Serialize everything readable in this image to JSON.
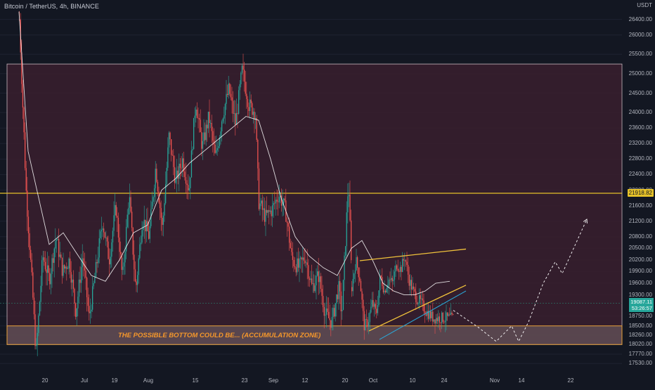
{
  "header": {
    "symbol_label": "Bitcoin / TetherUS, 4h, BINANCE"
  },
  "colors": {
    "background": "#131722",
    "up_candle": "#26a69a",
    "down_candle": "#ef5350",
    "range_box_fill": "#3a1f2e",
    "range_box_border": "#c8b8c0",
    "zone_fill": "#5c4a52",
    "zone_border": "#e8a13a",
    "resistance_line": "#e6c229",
    "wedge_line": "#f0c23b",
    "wedge_lower_line": "#2aa8d8",
    "moving_average": "#ffffff",
    "annotation_text": "#f6982b",
    "projection": "#ffffff"
  },
  "chart_data": {
    "type": "candlestick",
    "title": "Bitcoin / TetherUS, 4h, BINANCE",
    "y_axis_unit": "USDT",
    "ylim": [
      17300,
      26900
    ],
    "y_ticks": [
      "26400.00",
      "26000.00",
      "25500.00",
      "25000.00",
      "24500.00",
      "24000.00",
      "23600.00",
      "23200.00",
      "22800.00",
      "22400.00",
      "22000.00",
      "21600.00",
      "21200.00",
      "20800.00",
      "20500.00",
      "20200.00",
      "19900.00",
      "19600.00",
      "19300.00",
      "18750.00",
      "18500.00",
      "18260.00",
      "18020.00",
      "17770.00",
      "17530.00"
    ],
    "x_ticks": [
      "20",
      "Jul",
      "19",
      "Aug",
      "15",
      "23",
      "Sep",
      "12",
      "20",
      "Oct",
      "10",
      "24",
      "Nov",
      "14",
      "22"
    ],
    "price_path": [
      [
        0.0,
        26400
      ],
      [
        0.02,
        22000
      ],
      [
        0.04,
        19300
      ],
      [
        0.05,
        17750
      ],
      [
        0.07,
        20300
      ],
      [
        0.09,
        19700
      ],
      [
        0.11,
        20800
      ],
      [
        0.13,
        19900
      ],
      [
        0.15,
        20200
      ],
      [
        0.17,
        18850
      ],
      [
        0.19,
        20300
      ],
      [
        0.21,
        18700
      ],
      [
        0.23,
        19950
      ],
      [
        0.25,
        21200
      ],
      [
        0.27,
        20200
      ],
      [
        0.29,
        21600
      ],
      [
        0.31,
        19700
      ],
      [
        0.33,
        21900
      ],
      [
        0.35,
        19400
      ],
      [
        0.37,
        21300
      ],
      [
        0.39,
        20800
      ],
      [
        0.41,
        22600
      ],
      [
        0.43,
        21000
      ],
      [
        0.45,
        23400
      ],
      [
        0.47,
        22200
      ],
      [
        0.49,
        22800
      ],
      [
        0.51,
        22000
      ],
      [
        0.53,
        24300
      ],
      [
        0.55,
        23100
      ],
      [
        0.57,
        23900
      ],
      [
        0.59,
        22800
      ],
      [
        0.61,
        23900
      ],
      [
        0.63,
        24600
      ],
      [
        0.65,
        23700
      ],
      [
        0.67,
        25100
      ],
      [
        0.69,
        24200
      ],
      [
        0.71,
        24000
      ],
      [
        0.72,
        21700
      ],
      [
        0.74,
        21300
      ],
      [
        0.76,
        21500
      ],
      [
        0.78,
        21900
      ],
      [
        0.8,
        21500
      ],
      [
        0.82,
        20200
      ],
      [
        0.84,
        20000
      ],
      [
        0.86,
        20300
      ],
      [
        0.88,
        19500
      ],
      [
        0.9,
        19800
      ],
      [
        0.92,
        18800
      ],
      [
        0.94,
        18600
      ],
      [
        0.96,
        19500
      ],
      [
        0.97,
        18800
      ],
      [
        0.99,
        22300
      ],
      [
        1.0,
        19500
      ]
    ],
    "price_path_2": [
      [
        0.0,
        19500
      ],
      [
        0.04,
        20200
      ],
      [
        0.08,
        19700
      ],
      [
        0.12,
        18500
      ],
      [
        0.16,
        18600
      ],
      [
        0.2,
        19100
      ],
      [
        0.24,
        18800
      ],
      [
        0.28,
        19800
      ],
      [
        0.32,
        19400
      ],
      [
        0.36,
        19700
      ],
      [
        0.4,
        19600
      ],
      [
        0.44,
        20100
      ],
      [
        0.48,
        19950
      ],
      [
        0.52,
        20300
      ],
      [
        0.56,
        19700
      ],
      [
        0.6,
        19400
      ],
      [
        0.64,
        19200
      ],
      [
        0.68,
        19100
      ],
      [
        0.72,
        18900
      ],
      [
        0.76,
        18800
      ],
      [
        0.8,
        18700
      ],
      [
        1.0,
        18700
      ]
    ],
    "moving_average": [
      [
        27,
        26600
      ],
      [
        40,
        23000
      ],
      [
        70,
        20600
      ],
      [
        90,
        20900
      ],
      [
        108,
        20400
      ],
      [
        130,
        19800
      ],
      [
        150,
        19650
      ],
      [
        170,
        20200
      ],
      [
        190,
        20900
      ],
      [
        210,
        21100
      ],
      [
        230,
        22000
      ],
      [
        250,
        22300
      ],
      [
        270,
        22700
      ],
      [
        290,
        23000
      ],
      [
        310,
        23300
      ],
      [
        330,
        23600
      ],
      [
        350,
        23900
      ],
      [
        368,
        23800
      ],
      [
        385,
        22800
      ],
      [
        400,
        21800
      ],
      [
        420,
        20800
      ],
      [
        440,
        20300
      ],
      [
        460,
        20000
      ],
      [
        480,
        19800
      ],
      [
        500,
        20500
      ],
      [
        515,
        20700
      ],
      [
        530,
        20200
      ],
      [
        545,
        19600
      ],
      [
        560,
        19400
      ],
      [
        575,
        19300
      ],
      [
        590,
        19300
      ],
      [
        605,
        19400
      ],
      [
        620,
        19600
      ],
      [
        640,
        19650
      ]
    ],
    "horizontal_levels": [
      {
        "price": 21918.82,
        "label": "21918.82"
      }
    ],
    "range_box": {
      "top": 25250,
      "bottom": 18020
    },
    "accumulation_zone": {
      "top": 18500,
      "bottom": 18020
    },
    "wedge": {
      "upper": [
        [
          512,
          20180
        ],
        [
          663,
          20480
        ]
      ],
      "mid": [
        [
          525,
          18370
        ],
        [
          663,
          19550
        ]
      ],
      "lower": [
        [
          540,
          18150
        ],
        [
          663,
          19400
        ]
      ]
    },
    "projection_path": [
      [
        645,
        18900
      ],
      [
        680,
        18470
      ],
      [
        706,
        18100
      ],
      [
        728,
        18500
      ],
      [
        738,
        18100
      ],
      [
        752,
        18600
      ],
      [
        773,
        19600
      ],
      [
        790,
        20150
      ],
      [
        800,
        19850
      ],
      [
        835,
        21250
      ]
    ],
    "last_price_label": "19087.11",
    "countdown_label": "53:26:57",
    "annotations": [
      "THE POSSIBLE BOTTOM COULD BE... (ACCUMULATION ZONE)"
    ]
  }
}
